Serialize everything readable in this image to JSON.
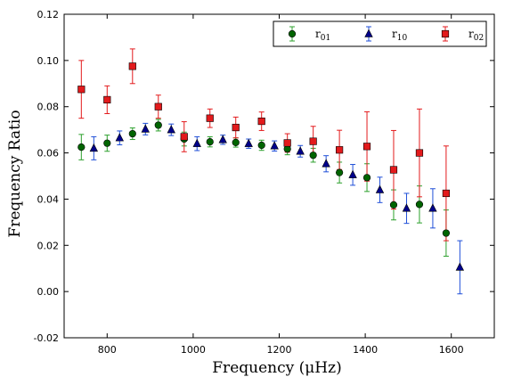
{
  "chart_data": {
    "type": "scatter",
    "title": "",
    "xlabel": "Frequency  (μHz)",
    "ylabel": "Frequency Ratio",
    "xlim": [
      700,
      1700
    ],
    "ylim": [
      -0.02,
      0.12
    ],
    "xticks": [
      800,
      1000,
      1200,
      1400,
      1600
    ],
    "yticks": [
      -0.02,
      0.0,
      0.02,
      0.04,
      0.06,
      0.08,
      0.1,
      0.12
    ],
    "xtick_labels": [
      "800",
      "1000",
      "1200",
      "1400",
      "1600"
    ],
    "ytick_labels": [
      "-0.02",
      "0.00",
      "0.02",
      "0.04",
      "0.06",
      "0.08",
      "0.10",
      "0.12"
    ],
    "grid": false,
    "legend_position": "top-right",
    "series": [
      {
        "name": "r01",
        "marker": "circle",
        "color": "#006400",
        "error_color": "#2ca02c",
        "points": [
          {
            "x": 740,
            "y": 0.0625,
            "err": 0.0055
          },
          {
            "x": 800,
            "y": 0.0642,
            "err": 0.0035
          },
          {
            "x": 859,
            "y": 0.0683,
            "err": 0.0025
          },
          {
            "x": 919,
            "y": 0.072,
            "err": 0.0025
          },
          {
            "x": 979,
            "y": 0.066,
            "err": 0.003
          },
          {
            "x": 1039,
            "y": 0.0648,
            "err": 0.0022
          },
          {
            "x": 1099,
            "y": 0.0645,
            "err": 0.002
          },
          {
            "x": 1159,
            "y": 0.0633,
            "err": 0.0022
          },
          {
            "x": 1219,
            "y": 0.0617,
            "err": 0.0025
          },
          {
            "x": 1279,
            "y": 0.059,
            "err": 0.003
          },
          {
            "x": 1340,
            "y": 0.0515,
            "err": 0.0045
          },
          {
            "x": 1404,
            "y": 0.0493,
            "err": 0.006
          },
          {
            "x": 1466,
            "y": 0.0375,
            "err": 0.0065
          },
          {
            "x": 1526,
            "y": 0.0377,
            "err": 0.008
          },
          {
            "x": 1588,
            "y": 0.0253,
            "err": 0.01
          }
        ]
      },
      {
        "name": "r10",
        "marker": "triangle",
        "color": "#00008b",
        "error_color": "#1f4fd8",
        "points": [
          {
            "x": 769,
            "y": 0.062,
            "err": 0.005
          },
          {
            "x": 829,
            "y": 0.0665,
            "err": 0.003
          },
          {
            "x": 889,
            "y": 0.0703,
            "err": 0.0025
          },
          {
            "x": 949,
            "y": 0.07,
            "err": 0.0025
          },
          {
            "x": 1009,
            "y": 0.064,
            "err": 0.003
          },
          {
            "x": 1069,
            "y": 0.0657,
            "err": 0.002
          },
          {
            "x": 1129,
            "y": 0.064,
            "err": 0.002
          },
          {
            "x": 1189,
            "y": 0.063,
            "err": 0.0022
          },
          {
            "x": 1249,
            "y": 0.0607,
            "err": 0.0025
          },
          {
            "x": 1309,
            "y": 0.0553,
            "err": 0.0035
          },
          {
            "x": 1371,
            "y": 0.0505,
            "err": 0.0045
          },
          {
            "x": 1434,
            "y": 0.044,
            "err": 0.0055
          },
          {
            "x": 1496,
            "y": 0.036,
            "err": 0.0065
          },
          {
            "x": 1557,
            "y": 0.036,
            "err": 0.0085
          },
          {
            "x": 1620,
            "y": 0.0105,
            "err": 0.0115
          }
        ]
      },
      {
        "name": "r02",
        "marker": "square",
        "color": "#e31a1c",
        "error_color": "#e31a1c",
        "points": [
          {
            "x": 740,
            "y": 0.0875,
            "err": 0.0125
          },
          {
            "x": 800,
            "y": 0.083,
            "err": 0.006
          },
          {
            "x": 859,
            "y": 0.0975,
            "err": 0.0075
          },
          {
            "x": 919,
            "y": 0.08,
            "err": 0.005
          },
          {
            "x": 979,
            "y": 0.067,
            "err": 0.0065
          },
          {
            "x": 1039,
            "y": 0.075,
            "err": 0.004
          },
          {
            "x": 1099,
            "y": 0.071,
            "err": 0.0045
          },
          {
            "x": 1159,
            "y": 0.0737,
            "err": 0.004
          },
          {
            "x": 1219,
            "y": 0.0643,
            "err": 0.004
          },
          {
            "x": 1279,
            "y": 0.065,
            "err": 0.0065
          },
          {
            "x": 1340,
            "y": 0.0613,
            "err": 0.0085
          },
          {
            "x": 1404,
            "y": 0.0628,
            "err": 0.015
          },
          {
            "x": 1466,
            "y": 0.0527,
            "err": 0.017
          },
          {
            "x": 1526,
            "y": 0.06,
            "err": 0.019
          },
          {
            "x": 1588,
            "y": 0.0425,
            "err": 0.0205
          }
        ]
      }
    ]
  }
}
